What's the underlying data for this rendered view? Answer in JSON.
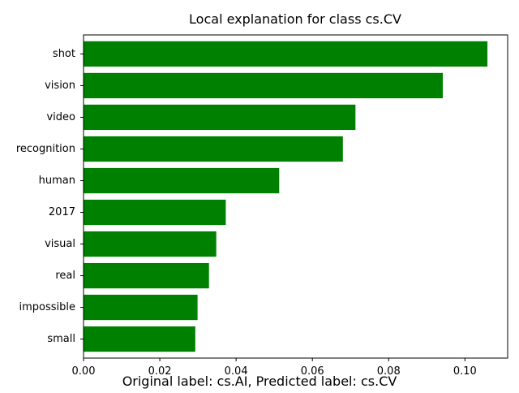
{
  "chart_data": {
    "type": "bar",
    "orientation": "horizontal",
    "title": "Local explanation for class cs.CV",
    "caption": "Original label: cs.AI, Predicted label: cs.CV",
    "categories": [
      "shot",
      "vision",
      "video",
      "recognition",
      "human",
      "2017",
      "visual",
      "real",
      "impossible",
      "small"
    ],
    "values": [
      0.1059,
      0.0942,
      0.0713,
      0.068,
      0.0513,
      0.0373,
      0.0348,
      0.0329,
      0.0299,
      0.0293
    ],
    "xlim": [
      0.0,
      0.1112
    ],
    "xticks": [
      0.0,
      0.02,
      0.04,
      0.06,
      0.08,
      0.1
    ],
    "xtick_labels": [
      "0.00",
      "0.02",
      "0.04",
      "0.06",
      "0.08",
      "0.10"
    ],
    "bar_color": "#008000",
    "grid": false,
    "xlabel": "",
    "ylabel": ""
  }
}
